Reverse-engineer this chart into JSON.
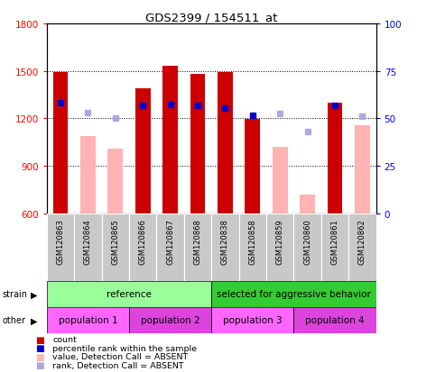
{
  "title": "GDS2399 / 154511_at",
  "samples": [
    "GSM120863",
    "GSM120864",
    "GSM120865",
    "GSM120866",
    "GSM120867",
    "GSM120868",
    "GSM120838",
    "GSM120858",
    "GSM120859",
    "GSM120860",
    "GSM120861",
    "GSM120862"
  ],
  "count_values": [
    1490,
    null,
    null,
    1390,
    1530,
    1480,
    1495,
    1195,
    null,
    null,
    1300,
    null
  ],
  "count_absent": [
    null,
    1090,
    1010,
    null,
    null,
    null,
    null,
    null,
    1020,
    720,
    null,
    1160
  ],
  "rank_values": [
    1300,
    null,
    null,
    1285,
    1290,
    1285,
    1265,
    1220,
    null,
    null,
    1280,
    null
  ],
  "rank_absent": [
    null,
    1235,
    1200,
    null,
    null,
    null,
    null,
    null,
    1230,
    1115,
    null,
    1215
  ],
  "ylim": [
    600,
    1800
  ],
  "yticks": [
    600,
    900,
    1200,
    1500,
    1800
  ],
  "y2lim": [
    0,
    100
  ],
  "y2ticks": [
    0,
    25,
    50,
    75,
    100
  ],
  "bar_color_count": "#cc0000",
  "bar_color_absent": "#ffb3b3",
  "dot_color_rank": "#0000cc",
  "dot_color_rank_absent": "#aaaadd",
  "tick_bg_color": "#c8c8c8",
  "legend_items": [
    {
      "label": "count",
      "color": "#cc0000"
    },
    {
      "label": "percentile rank within the sample",
      "color": "#0000cc"
    },
    {
      "label": "value, Detection Call = ABSENT",
      "color": "#ffb3b3"
    },
    {
      "label": "rank, Detection Call = ABSENT",
      "color": "#aaaadd"
    }
  ],
  "strain_groups": [
    {
      "label": "reference",
      "start": 0,
      "end": 6,
      "color": "#99ff99"
    },
    {
      "label": "selected for aggressive behavior",
      "start": 6,
      "end": 12,
      "color": "#33cc33"
    }
  ],
  "other_groups": [
    {
      "label": "population 1",
      "start": 0,
      "end": 3,
      "color": "#ff66ff"
    },
    {
      "label": "population 2",
      "start": 3,
      "end": 6,
      "color": "#dd44dd"
    },
    {
      "label": "population 3",
      "start": 6,
      "end": 9,
      "color": "#ff66ff"
    },
    {
      "label": "population 4",
      "start": 9,
      "end": 12,
      "color": "#dd44dd"
    }
  ]
}
